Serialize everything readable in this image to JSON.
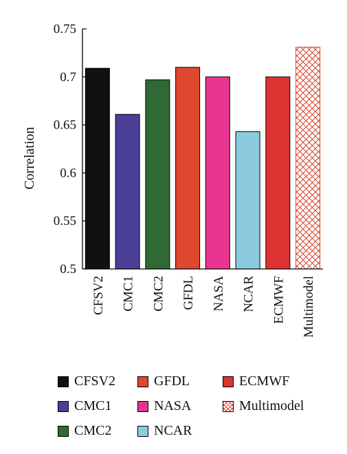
{
  "chart_data": {
    "type": "bar",
    "title": "",
    "xlabel": "",
    "ylabel": "Correlation",
    "ylim": [
      0.5,
      0.75
    ],
    "yticks": [
      "0.5",
      "0.55",
      "0.6",
      "0.65",
      "0.7",
      "0.75"
    ],
    "grid": false,
    "categories": [
      "CFSV2",
      "CMC1",
      "CMC2",
      "GFDL",
      "NASA",
      "NCAR",
      "ECMWF",
      "Multimodel"
    ],
    "values": [
      0.709,
      0.661,
      0.697,
      0.71,
      0.7,
      0.643,
      0.7,
      0.731
    ],
    "colors": [
      "#111111",
      "#4a3f98",
      "#2f6a36",
      "#e0472f",
      "#e83592",
      "#8ccbdd",
      "#dd3332",
      "pattern-crosshatch-red"
    ],
    "legend": {
      "placement": "bottom",
      "entries": [
        "CFSV2",
        "CMC1",
        "CMC2",
        "GFDL",
        "NASA",
        "NCAR",
        "ECMWF",
        "Multimodel"
      ]
    }
  }
}
